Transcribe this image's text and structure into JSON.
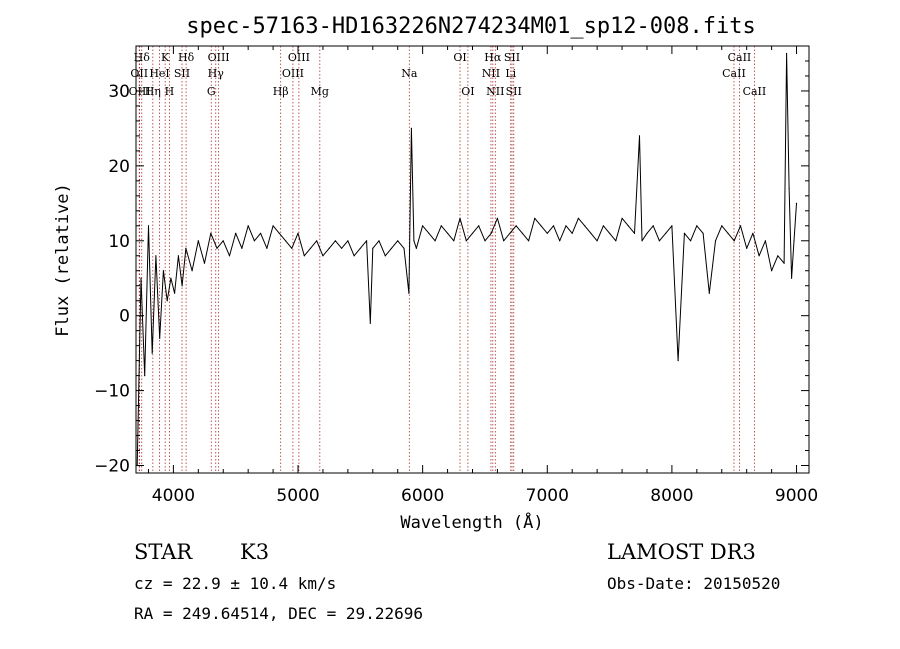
{
  "chart_data": {
    "type": "line",
    "title": "spec-57163-HD163226N274234M01_sp12-008.fits",
    "xlabel": "Wavelength (Å)",
    "ylabel": "Flux (relative)",
    "xlim": [
      3700,
      9100
    ],
    "ylim": [
      -21,
      36
    ],
    "x_ticks": [
      4000,
      5000,
      6000,
      7000,
      8000,
      9000
    ],
    "x_tick_labels": [
      "4000",
      "5000",
      "6000",
      "7000",
      "8000",
      "9000"
    ],
    "y_ticks": [
      -20,
      -10,
      0,
      10,
      20,
      30
    ],
    "y_tick_labels": [
      "−20",
      "−10",
      "0",
      "10",
      "20",
      "30"
    ],
    "series": [
      {
        "x": [
          3710,
          3740,
          3770,
          3800,
          3830,
          3860,
          3890,
          3920,
          3950,
          3980,
          4010,
          4040,
          4070,
          4100,
          4150,
          4200,
          4250,
          4300,
          4350,
          4400,
          4450,
          4500,
          4550,
          4600,
          4650,
          4700,
          4750,
          4800,
          4850,
          4900,
          4950,
          5000,
          5050,
          5100,
          5150,
          5200,
          5250,
          5300,
          5350,
          5400,
          5450,
          5500,
          5550,
          5580,
          5600,
          5650,
          5700,
          5750,
          5800,
          5850,
          5890,
          5910,
          5930,
          5950,
          6000,
          6050,
          6100,
          6150,
          6200,
          6250,
          6300,
          6350,
          6400,
          6450,
          6500,
          6550,
          6600,
          6650,
          6700,
          6750,
          6800,
          6850,
          6900,
          6950,
          7000,
          7050,
          7100,
          7150,
          7200,
          7250,
          7300,
          7350,
          7400,
          7450,
          7500,
          7550,
          7600,
          7650,
          7700,
          7740,
          7760,
          7800,
          7850,
          7900,
          7950,
          8000,
          8050,
          8100,
          8150,
          8200,
          8250,
          8300,
          8350,
          8400,
          8450,
          8500,
          8550,
          8600,
          8650,
          8700,
          8750,
          8800,
          8850,
          8900,
          8920,
          8940,
          8960,
          8980,
          9000
        ],
        "y": [
          -20,
          5,
          -8,
          12,
          -5,
          8,
          -3,
          6,
          2,
          5,
          3,
          8,
          4,
          9,
          6,
          10,
          7,
          11,
          9,
          10,
          8,
          11,
          9,
          12,
          10,
          11,
          9,
          12,
          11,
          10,
          9,
          11,
          8,
          9,
          10,
          8,
          9,
          10,
          9,
          10,
          8,
          9,
          10,
          -1,
          9,
          10,
          8,
          9,
          10,
          9,
          3,
          25,
          10,
          9,
          12,
          11,
          10,
          12,
          11,
          10,
          13,
          10,
          11,
          12,
          10,
          11,
          13,
          10,
          11,
          12,
          11,
          10,
          13,
          12,
          11,
          12,
          10,
          12,
          11,
          13,
          12,
          11,
          10,
          12,
          11,
          10,
          13,
          12,
          11,
          24,
          10,
          11,
          12,
          10,
          11,
          12,
          -6,
          11,
          10,
          12,
          11,
          3,
          10,
          12,
          11,
          10,
          12,
          9,
          11,
          8,
          10,
          6,
          8,
          7,
          35,
          17,
          5,
          10,
          15
        ]
      }
    ],
    "annotations": [
      {
        "label": "Hδ",
        "x": 3746,
        "row": 1
      },
      {
        "label": "OII",
        "x": 3726,
        "row": 2
      },
      {
        "label": "OIII",
        "x": 3729,
        "row": 3
      },
      {
        "label": "K",
        "x": 3934,
        "row": 1
      },
      {
        "label": "HeI",
        "x": 3889,
        "row": 2
      },
      {
        "label": "Hη",
        "x": 3835,
        "row": 3
      },
      {
        "label": "Hδ",
        "x": 4102,
        "row": 1
      },
      {
        "label": "SII",
        "x": 4069,
        "row": 2
      },
      {
        "label": "H",
        "x": 3968,
        "row": 3
      },
      {
        "label": "OIII",
        "x": 4363,
        "row": 1
      },
      {
        "label": "Hγ",
        "x": 4340,
        "row": 2
      },
      {
        "label": "G",
        "x": 4304,
        "row": 3
      },
      {
        "label": "OIII",
        "x": 5007,
        "row": 1
      },
      {
        "label": "OIII",
        "x": 4959,
        "row": 2
      },
      {
        "label": "Hβ",
        "x": 4861,
        "row": 3
      },
      {
        "label": "Mg",
        "x": 5175,
        "row": 3
      },
      {
        "label": "Na",
        "x": 5893,
        "row": 2
      },
      {
        "label": "OI",
        "x": 6300,
        "row": 1
      },
      {
        "label": "OI",
        "x": 6363,
        "row": 3
      },
      {
        "label": "Hα",
        "x": 6563,
        "row": 1
      },
      {
        "label": "NII",
        "x": 6548,
        "row": 2
      },
      {
        "label": "NII",
        "x": 6583,
        "row": 3
      },
      {
        "label": "SII",
        "x": 6717,
        "row": 1
      },
      {
        "label": "Li",
        "x": 6707,
        "row": 2
      },
      {
        "label": "SII",
        "x": 6731,
        "row": 3
      },
      {
        "label": "CaII",
        "x": 8542,
        "row": 1
      },
      {
        "label": "CaII",
        "x": 8498,
        "row": 2
      },
      {
        "label": "CaII",
        "x": 8662,
        "row": 3
      }
    ]
  },
  "info": {
    "object_class": "STAR",
    "subclass": "K3",
    "survey": "LAMOST DR3",
    "cz": "cz = 22.9 ± 10.4 km/s",
    "obs_date": "Obs-Date: 20150520",
    "coords": "RA = 249.64514, DEC =  29.22696"
  }
}
